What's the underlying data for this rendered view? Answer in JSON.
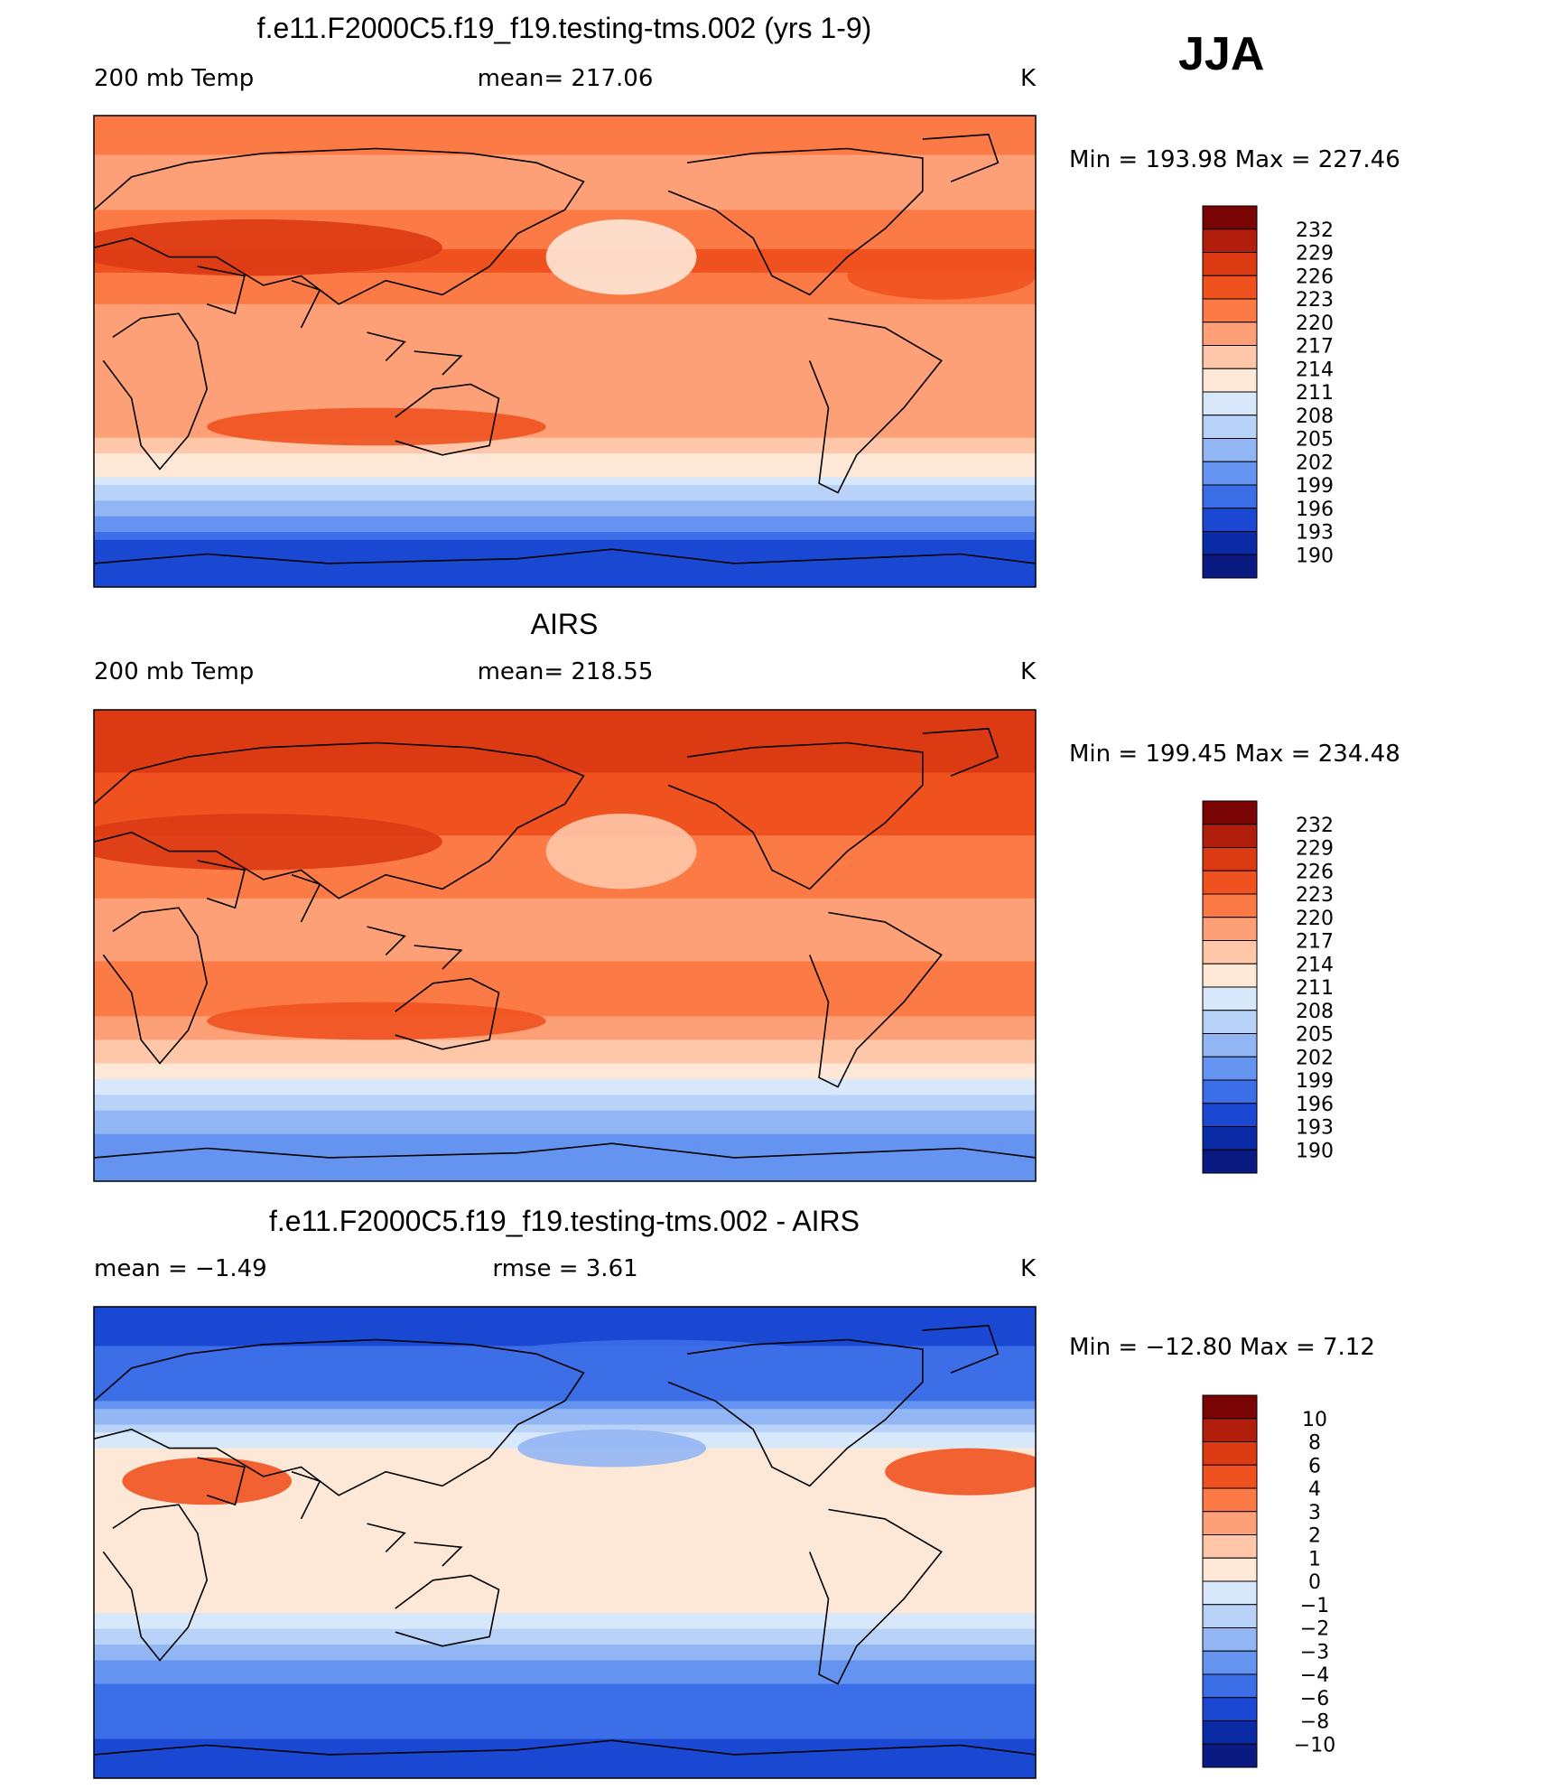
{
  "season": "JJA",
  "chart_data": [
    {
      "type": "heatmap",
      "title": "f.e11.F2000C5.f19_f19.testing-tms.002 (yrs 1-9)",
      "left_label": "200 mb Temp",
      "center_label": "mean=  217.06",
      "units": "K",
      "minmax_label": "Min  =  193.98  Max  =  227.46",
      "min": 193.98,
      "max": 227.46,
      "mean": 217.06,
      "colorbar_levels": [
        "232",
        "229",
        "226",
        "223",
        "220",
        "217",
        "214",
        "211",
        "208",
        "205",
        "202",
        "199",
        "196",
        "193",
        "190"
      ],
      "latitude_profile": [
        {
          "lat": 90,
          "value": 221
        },
        {
          "lat": 60,
          "value": 219
        },
        {
          "lat": 35,
          "value": 224
        },
        {
          "lat": 10,
          "value": 218
        },
        {
          "lat": -25,
          "value": 220
        },
        {
          "lat": -45,
          "value": 212
        },
        {
          "lat": -60,
          "value": 203
        },
        {
          "lat": -75,
          "value": 195
        },
        {
          "lat": -90,
          "value": 194
        }
      ]
    },
    {
      "type": "heatmap",
      "title": "AIRS",
      "left_label": "200 mb Temp",
      "center_label": "mean=  218.55",
      "units": "K",
      "minmax_label": "Min  =  199.45  Max  =  234.48",
      "min": 199.45,
      "max": 234.48,
      "mean": 218.55,
      "colorbar_levels": [
        "232",
        "229",
        "226",
        "223",
        "220",
        "217",
        "214",
        "211",
        "208",
        "205",
        "202",
        "199",
        "196",
        "193",
        "190"
      ],
      "latitude_profile": [
        {
          "lat": 90,
          "value": 229
        },
        {
          "lat": 60,
          "value": 225
        },
        {
          "lat": 35,
          "value": 222
        },
        {
          "lat": 10,
          "value": 219
        },
        {
          "lat": -25,
          "value": 221
        },
        {
          "lat": -45,
          "value": 214
        },
        {
          "lat": -60,
          "value": 206
        },
        {
          "lat": -75,
          "value": 201
        },
        {
          "lat": -90,
          "value": 200
        }
      ]
    },
    {
      "type": "heatmap",
      "title": "f.e11.F2000C5.f19_f19.testing-tms.002 - AIRS",
      "left_label": "mean  =     −1.49",
      "center_label": "rmse  =      3.61",
      "units": "K",
      "minmax_label": "Min  =  −12.80  Max  =     7.12",
      "min": -12.8,
      "max": 7.12,
      "mean": -1.49,
      "rmse": 3.61,
      "colorbar_levels": [
        "10",
        "8",
        "6",
        "4",
        "3",
        "2",
        "1",
        "0",
        "−1",
        "−2",
        "−3",
        "−4",
        "−6",
        "−8",
        "−10"
      ],
      "latitude_profile": [
        {
          "lat": 90,
          "value": -7
        },
        {
          "lat": 60,
          "value": -5
        },
        {
          "lat": 35,
          "value": 0.5
        },
        {
          "lat": 10,
          "value": 0.5
        },
        {
          "lat": -25,
          "value": 0.5
        },
        {
          "lat": -45,
          "value": -3
        },
        {
          "lat": -60,
          "value": -5
        },
        {
          "lat": -75,
          "value": -6
        },
        {
          "lat": -90,
          "value": -7
        }
      ]
    }
  ],
  "colors": {
    "palette": [
      "#7a0403",
      "#b11e0c",
      "#dc3a13",
      "#f0521f",
      "#fb7a45",
      "#fda077",
      "#fec7a9",
      "#fde8d7",
      "#d8e8fb",
      "#b9d2f8",
      "#92b5f4",
      "#6494ef",
      "#3c6ee8",
      "#1b48d2",
      "#0b2ba6",
      "#0a1a80"
    ]
  }
}
